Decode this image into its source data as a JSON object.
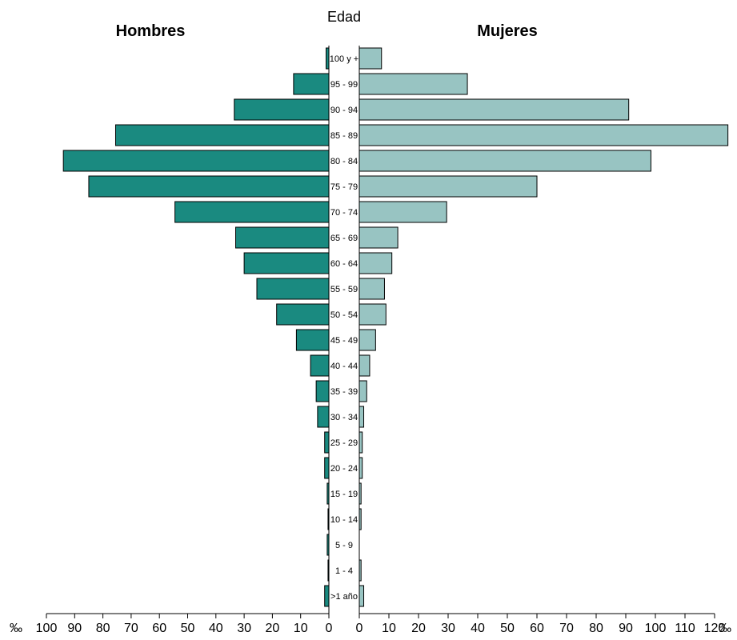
{
  "chart_data": {
    "type": "bar",
    "orientation": "population-pyramid",
    "center_label": "Edad",
    "left_title": "Hombres",
    "right_title": "Mujeres",
    "unit_symbol": "‰",
    "categories": [
      "100 y +",
      "95 - 99",
      "90 - 94",
      "85 - 89",
      "80 - 84",
      "75 - 79",
      "70 - 74",
      "65 - 69",
      "60 - 64",
      "55 - 59",
      "50 - 54",
      "45 - 49",
      "40 - 44",
      "35 - 39",
      "30 - 34",
      "25 - 29",
      "20 - 24",
      "15 - 19",
      "10 - 14",
      "5 - 9",
      "1 - 4",
      ">1 año"
    ],
    "series": [
      {
        "name": "Hombres",
        "color": "#1a8a80",
        "values": [
          1.0,
          12.5,
          33.5,
          75.5,
          94.0,
          85.0,
          54.5,
          33.0,
          30.0,
          25.5,
          18.5,
          11.5,
          6.5,
          4.5,
          4.0,
          1.5,
          1.5,
          0.6,
          0.3,
          0.6,
          0.3,
          1.5
        ]
      },
      {
        "name": "Mujeres",
        "color": "#98c4c2",
        "values": [
          7.5,
          36.5,
          91.0,
          124.5,
          98.5,
          60.0,
          29.5,
          13.0,
          11.0,
          8.5,
          9.0,
          5.5,
          3.5,
          2.5,
          1.5,
          1.0,
          1.0,
          0.6,
          0.6,
          0.0,
          0.6,
          1.5
        ]
      }
    ],
    "left_ticks": [
      100,
      90,
      80,
      70,
      60,
      50,
      40,
      30,
      20,
      10,
      0
    ],
    "right_ticks": [
      0,
      10,
      20,
      30,
      40,
      50,
      60,
      70,
      80,
      90,
      100,
      110,
      120
    ],
    "left_xlim": [
      0,
      100
    ],
    "right_xlim": [
      0,
      120
    ],
    "grid": false
  }
}
